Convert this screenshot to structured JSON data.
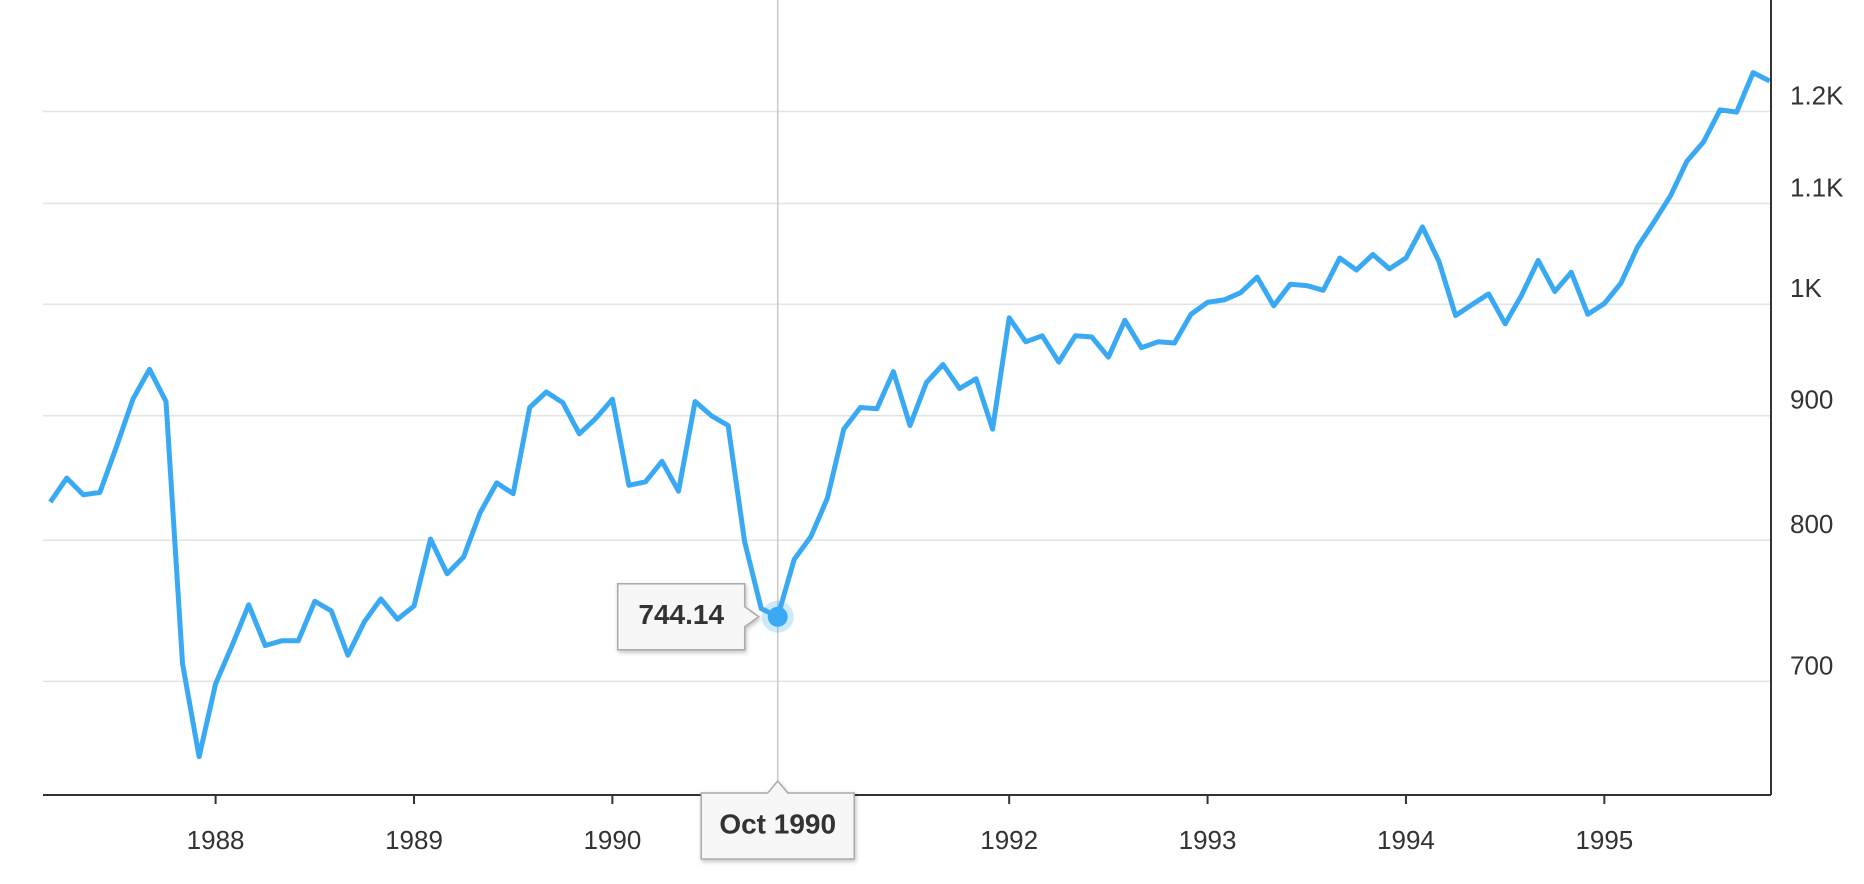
{
  "chart_data": {
    "type": "line",
    "log_y": true,
    "grid": true,
    "color": "#3aa9f4",
    "x": [
      "Feb 1987",
      "Mar 1987",
      "Apr 1987",
      "May 1987",
      "Jun 1987",
      "Jul 1987",
      "Aug 1987",
      "Sep 1987",
      "Oct 1987",
      "Nov 1987",
      "Dec 1987",
      "Jan 1988",
      "Feb 1988",
      "Mar 1988",
      "Apr 1988",
      "May 1988",
      "Jun 1988",
      "Jul 1988",
      "Aug 1988",
      "Sep 1988",
      "Oct 1988",
      "Nov 1988",
      "Dec 1988",
      "Jan 1989",
      "Feb 1989",
      "Mar 1989",
      "Apr 1989",
      "May 1989",
      "Jun 1989",
      "Jul 1989",
      "Aug 1989",
      "Sep 1989",
      "Oct 1989",
      "Nov 1989",
      "Dec 1989",
      "Jan 1990",
      "Feb 1990",
      "Mar 1990",
      "Apr 1990",
      "May 1990",
      "Jun 1990",
      "Jul 1990",
      "Aug 1990",
      "Sep 1990",
      "Oct 1990",
      "Nov 1990",
      "Dec 1990",
      "Jan 1991",
      "Feb 1991",
      "Mar 1991",
      "Apr 1991",
      "May 1991",
      "Jun 1991",
      "Jul 1991",
      "Aug 1991",
      "Sep 1991",
      "Oct 1991",
      "Nov 1991",
      "Dec 1991",
      "Jan 1992",
      "Feb 1992",
      "Mar 1992",
      "Apr 1992",
      "May 1992",
      "Jun 1992",
      "Jul 1992",
      "Aug 1992",
      "Sep 1992",
      "Oct 1992",
      "Nov 1992",
      "Dec 1992",
      "Jan 1993",
      "Feb 1993",
      "Mar 1993",
      "Apr 1993",
      "May 1993",
      "Jun 1993",
      "Jul 1993",
      "Aug 1993",
      "Sep 1993",
      "Oct 1993",
      "Nov 1993",
      "Dec 1993",
      "Jan 1994",
      "Feb 1994",
      "Mar 1994",
      "Apr 1994",
      "May 1994",
      "Jun 1994",
      "Jul 1994",
      "Aug 1994",
      "Sep 1994",
      "Oct 1994",
      "Nov 1994",
      "Dec 1994",
      "Jan 1995",
      "Feb 1995",
      "Mar 1995",
      "Apr 1995",
      "May 1995",
      "Jun 1995",
      "Jul 1995",
      "Aug 1995",
      "Sep 1995",
      "Oct 1995"
    ],
    "values": [
      829.4,
      848.4,
      835.1,
      837,
      873.8,
      914.2,
      940.4,
      912.2,
      712,
      651.9,
      698.4,
      724.2,
      752.6,
      724.2,
      727.4,
      727.4,
      755.1,
      748.3,
      717.6,
      740.7,
      756.8,
      742.4,
      751.7,
      800.9,
      775,
      787.4,
      821,
      844.6,
      836,
      907,
      920.4,
      911.1,
      884.7,
      897.8,
      914.2,
      842.7,
      845.5,
      862,
      838,
      912.2,
      899.8,
      891.7,
      799,
      750,
      744.14,
      785.6,
      802.7,
      832.3,
      888.7,
      907,
      905.9,
      938.3,
      891.7,
      928.8,
      944.7,
      923.5,
      932,
      888.7,
      987.3,
      965.2,
      970.7,
      946.8,
      970.7,
      969.6,
      951.2,
      985,
      959.8,
      965.2,
      964.1,
      990.6,
      1001.9,
      1004.2,
      1011,
      1026.1,
      998.6,
      1019.1,
      1017.9,
      1013.3,
      1044.8,
      1033,
      1048.2,
      1034.2,
      1044.8,
      1076,
      1041.2,
      989.5,
      999.7,
      1009.9,
      981.7,
      1008.8,
      1042.4,
      1012.2,
      1030.7,
      990.6,
      1000.8,
      1020.2,
      1055.4,
      1080.9,
      1108.1,
      1145.1,
      1165.9,
      1202,
      1199.4,
      1245,
      1235.2
    ],
    "tooltip_index": 44,
    "xlim": [
      1987.13,
      1995.84
    ],
    "xticks": [
      1988,
      1989,
      1990,
      1992,
      1993,
      1994,
      1995
    ],
    "ylim": [
      628.7,
      1331
    ],
    "yticks": [
      700,
      800,
      900,
      {
        "value": 1000,
        "label": "1K"
      },
      {
        "value": 1100,
        "label": "1.1K"
      },
      {
        "value": 1200,
        "label": "1.2K"
      }
    ]
  }
}
